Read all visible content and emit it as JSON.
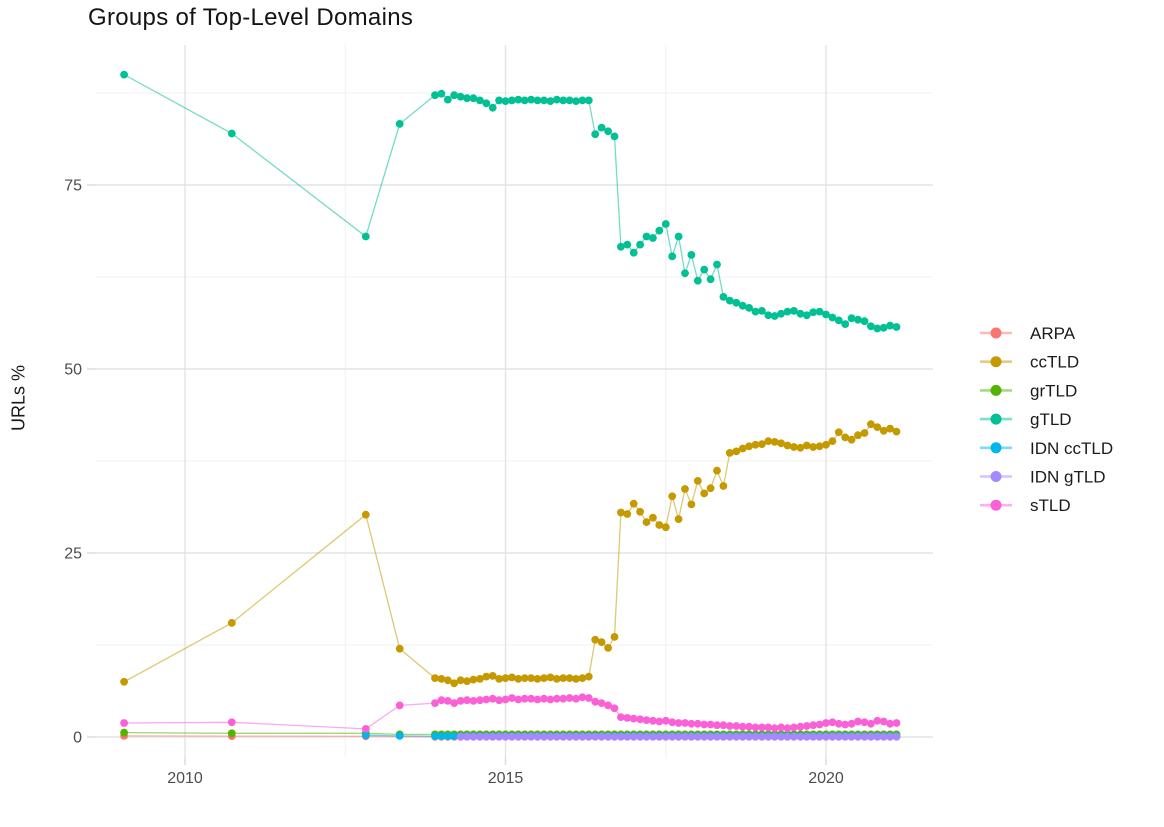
{
  "chart_data": {
    "type": "line",
    "markers": true,
    "title": "Groups of Top-Level Domains",
    "xlabel": "",
    "ylabel": "URLs %",
    "grid": true,
    "legend_position": "right",
    "x_axis": {
      "ticks": [
        2010,
        2015,
        2020
      ],
      "minor": [
        2012.5,
        2017.5
      ],
      "range": [
        2008.6,
        2021.67
      ]
    },
    "y_axis": {
      "ticks": [
        0,
        25,
        50,
        75
      ],
      "minor": [
        12.5,
        37.5,
        62.5,
        87.5
      ],
      "range": [
        -2.7,
        94
      ]
    },
    "x_dense": [
      2013.9,
      2014.0,
      2014.1,
      2014.2,
      2014.3,
      2014.4,
      2014.5,
      2014.6,
      2014.7,
      2014.8,
      2014.9,
      2015.0,
      2015.1,
      2015.2,
      2015.3,
      2015.4,
      2015.5,
      2015.6,
      2015.7,
      2015.8,
      2015.9,
      2016.0,
      2016.1,
      2016.2,
      2016.3,
      2016.4,
      2016.5,
      2016.6,
      2016.7,
      2016.8,
      2016.9,
      2017.0,
      2017.1,
      2017.2,
      2017.3,
      2017.4,
      2017.5,
      2017.6,
      2017.7,
      2017.8,
      2017.9,
      2018.0,
      2018.1,
      2018.2,
      2018.3,
      2018.4,
      2018.5,
      2018.6,
      2018.7,
      2018.8,
      2018.9,
      2019.0,
      2019.1,
      2019.2,
      2019.3,
      2019.4,
      2019.5,
      2019.6,
      2019.7,
      2019.8,
      2019.9,
      2020.0,
      2020.1,
      2020.2,
      2020.3,
      2020.4,
      2020.5,
      2020.6,
      2020.7,
      2020.8,
      2020.9,
      2021.0,
      2021.1
    ],
    "series": [
      {
        "name": "ARPA",
        "color": "#F8766D",
        "early": [
          [
            2009.05,
            0.15
          ],
          [
            2010.73,
            0.12
          ],
          [
            2012.82,
            0.1
          ]
        ],
        "dense_from": 2013.9,
        "dense_const": 0.03
      },
      {
        "name": "ccTLD",
        "color": "#C49A00",
        "early": [
          [
            2009.05,
            7.5
          ],
          [
            2010.73,
            15.5
          ],
          [
            2012.82,
            30.2
          ],
          [
            2013.35,
            12.0
          ]
        ],
        "dense_from": 2013.9,
        "dense": [
          8.0,
          7.9,
          7.7,
          7.3,
          7.7,
          7.6,
          7.8,
          7.9,
          8.2,
          8.3,
          7.9,
          8.0,
          8.1,
          7.9,
          8.0,
          8.0,
          7.9,
          8.0,
          8.1,
          7.9,
          8.0,
          8.0,
          7.9,
          8.0,
          8.2,
          13.2,
          12.9,
          12.1,
          13.6,
          30.5,
          30.3,
          31.7,
          30.6,
          29.2,
          29.8,
          28.8,
          28.5,
          32.7,
          29.6,
          33.7,
          31.6,
          34.8,
          33.1,
          33.8,
          36.2,
          34.1,
          38.6,
          38.8,
          39.2,
          39.5,
          39.7,
          39.8,
          40.2,
          40.1,
          39.9,
          39.6,
          39.4,
          39.3,
          39.6,
          39.4,
          39.5,
          39.7,
          40.2,
          41.4,
          40.7,
          40.4,
          41.0,
          41.3,
          42.5,
          42.1,
          41.6,
          41.9,
          41.5
        ]
      },
      {
        "name": "grTLD",
        "color": "#53B400",
        "early": [
          [
            2009.05,
            0.6
          ],
          [
            2010.73,
            0.5
          ],
          [
            2012.82,
            0.5
          ],
          [
            2013.35,
            0.35
          ]
        ],
        "dense_from": 2013.9,
        "dense_const": 0.35
      },
      {
        "name": "gTLD",
        "color": "#00C094",
        "early": [
          [
            2009.05,
            90.0
          ],
          [
            2010.73,
            82.0
          ],
          [
            2012.82,
            68.0
          ],
          [
            2013.35,
            83.3
          ]
        ],
        "dense_from": 2013.9,
        "dense": [
          87.2,
          87.4,
          86.6,
          87.2,
          87.0,
          86.8,
          86.8,
          86.5,
          86.1,
          85.5,
          86.5,
          86.4,
          86.5,
          86.6,
          86.5,
          86.6,
          86.5,
          86.5,
          86.4,
          86.6,
          86.5,
          86.5,
          86.4,
          86.5,
          86.5,
          81.9,
          82.8,
          82.3,
          81.6,
          66.6,
          66.9,
          65.8,
          66.9,
          68.0,
          67.8,
          68.8,
          69.7,
          65.3,
          68.0,
          63.0,
          65.5,
          62.0,
          63.5,
          62.2,
          64.2,
          59.8,
          59.3,
          59.0,
          58.6,
          58.3,
          57.8,
          57.9,
          57.3,
          57.2,
          57.5,
          57.8,
          57.9,
          57.5,
          57.3,
          57.7,
          57.8,
          57.4,
          57.0,
          56.6,
          56.1,
          56.9,
          56.7,
          56.5,
          55.8,
          55.5,
          55.6,
          55.9,
          55.7
        ]
      },
      {
        "name": "IDN ccTLD",
        "color": "#00B6EB",
        "early": [
          [
            2012.82,
            0.25
          ],
          [
            2013.35,
            0.15
          ]
        ],
        "dense_from": 2013.9,
        "dense_const": 0.12
      },
      {
        "name": "IDN gTLD",
        "color": "#A58AFF",
        "early": [],
        "dense_from": 2014.3,
        "dense_const": 0.05
      },
      {
        "name": "sTLD",
        "color": "#FB61D7",
        "early": [
          [
            2009.05,
            1.9
          ],
          [
            2010.73,
            2.0
          ],
          [
            2012.82,
            1.1
          ],
          [
            2013.35,
            4.3
          ]
        ],
        "dense_from": 2013.9,
        "dense": [
          4.6,
          5.0,
          4.9,
          4.6,
          4.9,
          5.0,
          4.9,
          5.0,
          5.1,
          5.2,
          5.0,
          5.1,
          5.3,
          5.1,
          5.2,
          5.2,
          5.1,
          5.2,
          5.1,
          5.2,
          5.2,
          5.3,
          5.2,
          5.4,
          5.3,
          4.8,
          4.6,
          4.3,
          3.9,
          2.7,
          2.6,
          2.5,
          2.4,
          2.3,
          2.2,
          2.1,
          2.2,
          2.0,
          1.9,
          1.9,
          1.8,
          1.8,
          1.7,
          1.7,
          1.6,
          1.6,
          1.5,
          1.5,
          1.4,
          1.4,
          1.3,
          1.3,
          1.3,
          1.2,
          1.3,
          1.2,
          1.3,
          1.4,
          1.5,
          1.6,
          1.7,
          1.9,
          2.0,
          1.8,
          1.7,
          1.8,
          2.1,
          2.0,
          1.8,
          2.2,
          2.1,
          1.8,
          1.9
        ]
      }
    ]
  }
}
